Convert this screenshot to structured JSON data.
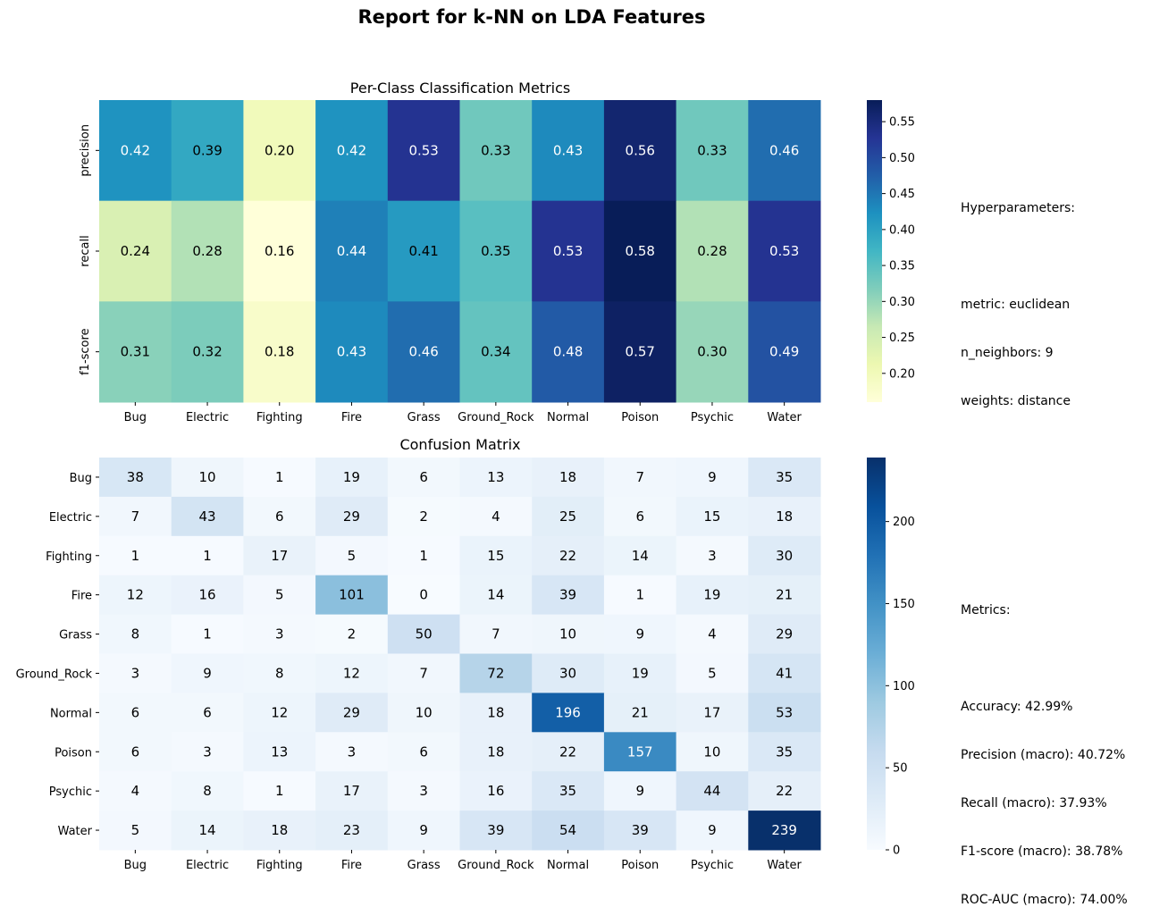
{
  "page": {
    "title": "Report for k-NN on LDA Features"
  },
  "chart_data": [
    {
      "type": "heatmap",
      "title": "Per-Class Classification Metrics",
      "colormap": "YlGnBu",
      "x_categories": [
        "Bug",
        "Electric",
        "Fighting",
        "Fire",
        "Grass",
        "Ground_Rock",
        "Normal",
        "Poison",
        "Psychic",
        "Water"
      ],
      "y_categories": [
        "precision",
        "recall",
        "f1-score"
      ],
      "values": [
        [
          0.42,
          0.39,
          0.2,
          0.42,
          0.53,
          0.33,
          0.43,
          0.56,
          0.33,
          0.46
        ],
        [
          0.24,
          0.28,
          0.16,
          0.44,
          0.41,
          0.35,
          0.53,
          0.58,
          0.28,
          0.53
        ],
        [
          0.31,
          0.32,
          0.18,
          0.43,
          0.46,
          0.34,
          0.48,
          0.57,
          0.3,
          0.49
        ]
      ],
      "vmin": 0.16,
      "vmax": 0.58,
      "colorbar_ticks": [
        "0.20",
        "0.25",
        "0.30",
        "0.35",
        "0.40",
        "0.45",
        "0.50",
        "0.55"
      ]
    },
    {
      "type": "heatmap",
      "title": "Confusion Matrix",
      "colormap": "Blues",
      "x_categories": [
        "Bug",
        "Electric",
        "Fighting",
        "Fire",
        "Grass",
        "Ground_Rock",
        "Normal",
        "Poison",
        "Psychic",
        "Water"
      ],
      "y_categories": [
        "Bug",
        "Electric",
        "Fighting",
        "Fire",
        "Grass",
        "Ground_Rock",
        "Normal",
        "Poison",
        "Psychic",
        "Water"
      ],
      "values": [
        [
          38,
          10,
          1,
          19,
          6,
          13,
          18,
          7,
          9,
          35
        ],
        [
          7,
          43,
          6,
          29,
          2,
          4,
          25,
          6,
          15,
          18
        ],
        [
          1,
          1,
          17,
          5,
          1,
          15,
          22,
          14,
          3,
          30
        ],
        [
          12,
          16,
          5,
          101,
          0,
          14,
          39,
          1,
          19,
          21
        ],
        [
          8,
          1,
          3,
          2,
          50,
          7,
          10,
          9,
          4,
          29
        ],
        [
          3,
          9,
          8,
          12,
          7,
          72,
          30,
          19,
          5,
          41
        ],
        [
          6,
          6,
          12,
          29,
          10,
          18,
          196,
          21,
          17,
          53
        ],
        [
          6,
          3,
          13,
          3,
          6,
          18,
          22,
          157,
          10,
          35
        ],
        [
          4,
          8,
          1,
          17,
          3,
          16,
          35,
          9,
          44,
          22
        ],
        [
          5,
          14,
          18,
          23,
          9,
          39,
          54,
          39,
          9,
          239
        ]
      ],
      "vmin": 0,
      "vmax": 239,
      "colorbar_ticks": [
        "0",
        "50",
        "100",
        "150",
        "200"
      ]
    }
  ],
  "hyperparameters": {
    "heading": "Hyperparameters:",
    "lines": [
      "metric: euclidean",
      "n_neighbors: 9",
      "weights: distance"
    ]
  },
  "metrics": {
    "heading": "Metrics:",
    "lines": [
      "Accuracy: 42.99%",
      "Precision (macro): 40.72%",
      "Recall (macro): 37.93%",
      "F1-score (macro): 38.78%",
      "ROC-AUC (macro): 74.00%"
    ]
  }
}
